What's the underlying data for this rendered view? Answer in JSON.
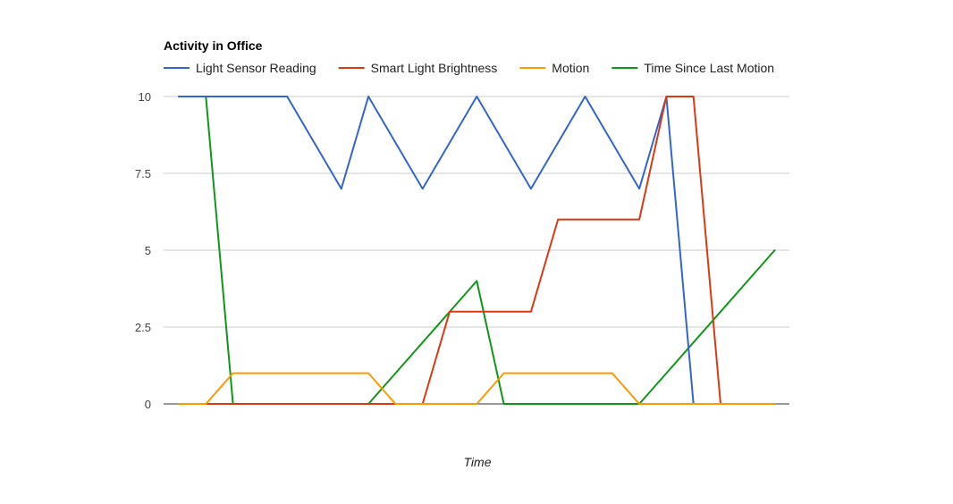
{
  "chart_data": {
    "type": "line",
    "title": "Activity in Office",
    "xlabel": "Time",
    "ylabel": "",
    "ylim": [
      0,
      10
    ],
    "yticks": [
      "0",
      "2.5",
      "5",
      "7.5",
      "10"
    ],
    "ytick_values": [
      0,
      2.5,
      5,
      7.5,
      10
    ],
    "x": [
      0,
      1,
      2,
      3,
      4,
      5,
      6,
      7,
      8,
      9,
      10,
      11,
      12,
      13,
      14,
      15,
      16,
      17,
      18,
      19,
      20,
      21,
      22
    ],
    "grid": true,
    "legend_position": "top",
    "series": [
      {
        "name": "Light Sensor Reading",
        "color": "#3366cc",
        "values": [
          10,
          10,
          10,
          10,
          10,
          8.5,
          7,
          10,
          8.5,
          7,
          8.5,
          10,
          8.5,
          7,
          8.5,
          10,
          8.5,
          7,
          10,
          0,
          0,
          0,
          0
        ]
      },
      {
        "name": "Smart Light Brightness",
        "color": "#dc3912",
        "values": [
          0,
          0,
          0,
          0,
          0,
          0,
          0,
          0,
          0,
          0,
          3,
          3,
          3,
          3,
          6,
          6,
          6,
          6,
          10,
          10,
          0,
          0,
          0
        ]
      },
      {
        "name": "Motion",
        "color": "#ff9900",
        "values": [
          0,
          0,
          1,
          1,
          1,
          1,
          1,
          1,
          0,
          0,
          0,
          0,
          1,
          1,
          1,
          1,
          1,
          0,
          0,
          0,
          0,
          0,
          0
        ]
      },
      {
        "name": "Time Since Last Motion",
        "color": "#109618",
        "values": [
          10,
          10,
          0,
          0,
          0,
          0,
          0,
          0,
          1,
          2,
          3,
          4,
          0,
          0,
          0,
          0,
          0,
          0,
          1,
          2,
          3,
          4,
          5
        ]
      }
    ]
  }
}
